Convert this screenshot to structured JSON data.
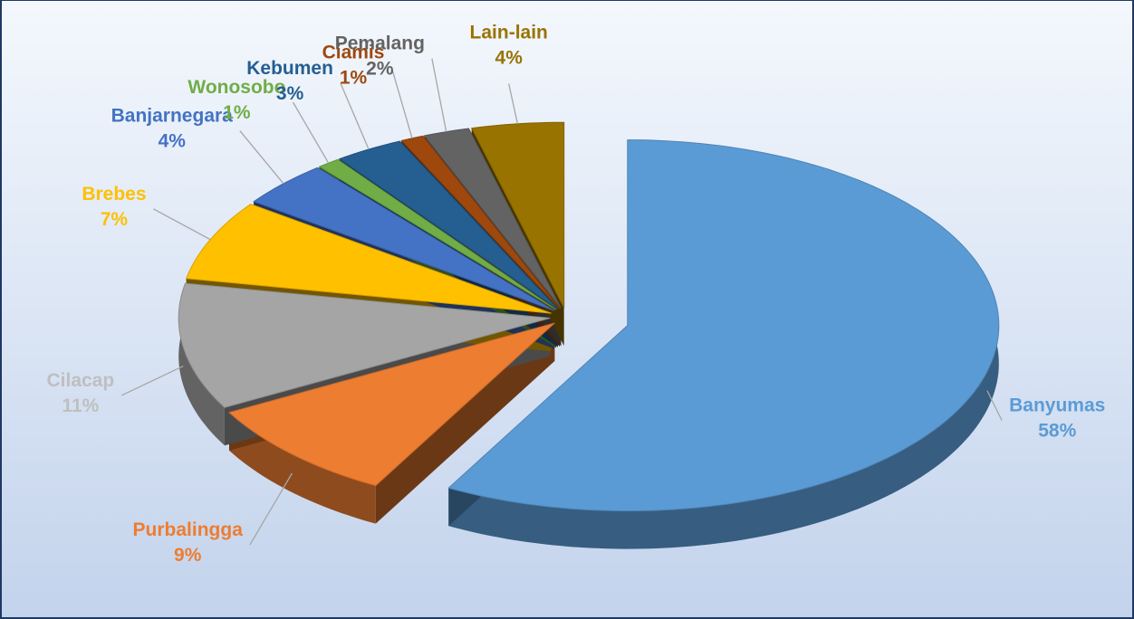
{
  "chart_data": {
    "type": "pie",
    "categories": [
      "Banyumas",
      "Purbalingga",
      "Cilacap",
      "Brebes",
      "Banjarnegara",
      "Wonosobo",
      "Kebumen",
      "Ciamis",
      "Pemalang",
      "Lain-lain"
    ],
    "values": [
      58,
      9,
      11,
      7,
      4,
      1,
      3,
      1,
      2,
      4
    ],
    "value_labels": [
      "58%",
      "9%",
      "11%",
      "7%",
      "4%",
      "1%",
      "3%",
      "1%",
      "2%",
      "4%"
    ],
    "colors": [
      "#5b9bd5",
      "#ed7d31",
      "#a5a5a5",
      "#ffc000",
      "#4472c4",
      "#70ad47",
      "#255e91",
      "#9e480e",
      "#636363",
      "#997300"
    ]
  }
}
